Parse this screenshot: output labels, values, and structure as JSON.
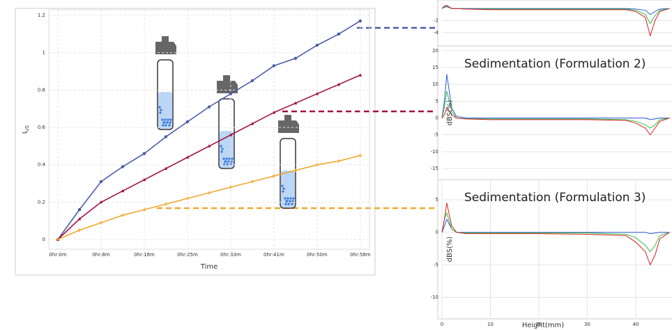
{
  "chart_data": [
    {
      "type": "line",
      "xlabel": "Time",
      "ylabel": "I",
      "ylabel_sub": "US",
      "grid": true,
      "x": [
        0,
        4.17,
        8.33,
        12.5,
        16.67,
        20.83,
        25,
        29.17,
        33.33,
        37.5,
        41.67,
        45.83,
        50,
        54.17,
        58.33
      ],
      "xlim": [
        -1.75,
        60.1
      ],
      "ylim": [
        -0.052,
        1.23
      ],
      "xticks": [
        {
          "value": 0,
          "label": "0hr:0m"
        },
        {
          "value": 8.33,
          "label": "0hr:8m"
        },
        {
          "value": 16.67,
          "label": "0hr:16m"
        },
        {
          "value": 25,
          "label": "0hr:25m"
        },
        {
          "value": 33.33,
          "label": "0hr:33m"
        },
        {
          "value": 41.67,
          "label": "0hr:41m"
        },
        {
          "value": 50,
          "label": "0hr:50m"
        },
        {
          "value": 58.33,
          "label": "0hr:58m"
        }
      ],
      "yticks": [
        0,
        0.2,
        0.4,
        0.6,
        0.8,
        1,
        1.2
      ],
      "series": [
        {
          "color": "#4a5ca8",
          "marker": "circle",
          "values": [
            0,
            0.16,
            0.31,
            0.39,
            0.46,
            0.55,
            0.63,
            0.71,
            0.78,
            0.85,
            0.93,
            0.97,
            1.04,
            1.1,
            1.17
          ]
        },
        {
          "color": "#a3103f",
          "marker": "triangle",
          "values": [
            0,
            0.11,
            0.2,
            0.26,
            0.32,
            0.38,
            0.44,
            0.5,
            0.56,
            0.62,
            0.68,
            0.73,
            0.78,
            0.83,
            0.88
          ]
        },
        {
          "color": "#f0a830",
          "marker": "star",
          "values": [
            0,
            0.05,
            0.09,
            0.13,
            0.16,
            0.19,
            0.22,
            0.25,
            0.28,
            0.31,
            0.34,
            0.37,
            0.4,
            0.42,
            0.45
          ]
        }
      ]
    },
    {
      "type": "line",
      "grid": true,
      "x": [
        0,
        0.5,
        1,
        2,
        3,
        5,
        10,
        20,
        30,
        38,
        40,
        42,
        43,
        44,
        45,
        47
      ],
      "xlim": [
        0,
        47.5
      ],
      "ylim": [
        -6.2,
        1.4
      ],
      "yticks": [
        -2,
        -4
      ],
      "series": [
        {
          "color": "#2a5bd8",
          "values": [
            0,
            0.2,
            0.3,
            0,
            0,
            0,
            0,
            0,
            0,
            0,
            -0.1,
            -0.3,
            -1,
            -0.5,
            -0.1,
            0
          ]
        },
        {
          "color": "#30c040",
          "values": [
            0,
            0.3,
            0.4,
            0,
            0,
            -0.1,
            -0.1,
            -0.1,
            -0.1,
            -0.1,
            -0.3,
            -1,
            -2.5,
            -1.2,
            -0.3,
            0
          ]
        },
        {
          "color": "#d82020",
          "values": [
            0,
            0.4,
            0.5,
            0,
            0,
            -0.1,
            -0.2,
            -0.2,
            -0.2,
            -0.2,
            -0.5,
            -1.5,
            -4.5,
            -2,
            -0.5,
            0
          ]
        }
      ]
    },
    {
      "type": "line",
      "title": "Sedimentation (Formulation 2)",
      "ylabel": "dBS(%)",
      "grid": true,
      "x": [
        0,
        0.5,
        1,
        2,
        3,
        5,
        10,
        20,
        30,
        38,
        40,
        42,
        43,
        44,
        45,
        47
      ],
      "xlim": [
        0,
        47.5
      ],
      "ylim": [
        -18.3,
        21.4
      ],
      "yticks": [
        20,
        15,
        10,
        5,
        0,
        -5,
        -10,
        -15
      ],
      "series": [
        {
          "color": "#2a5bd8",
          "values": [
            0,
            5,
            13,
            3,
            0.5,
            0,
            0,
            0,
            0,
            0,
            0,
            0,
            -0.5,
            -0.3,
            0,
            0
          ]
        },
        {
          "color": "#30c040",
          "values": [
            0,
            3,
            8,
            2,
            0,
            -0.2,
            -0.3,
            -0.3,
            -0.3,
            -0.5,
            -1,
            -2,
            -3,
            -2,
            -0.5,
            0
          ]
        },
        {
          "color": "#d82020",
          "values": [
            0,
            1,
            3,
            1,
            0,
            -0.3,
            -0.5,
            -0.5,
            -0.5,
            -0.7,
            -1.5,
            -3,
            -5,
            -3,
            -1,
            0
          ]
        }
      ]
    },
    {
      "type": "line",
      "title": "Sedimentation (Formulation 3)",
      "ylabel": "dBS(%)",
      "xlabel": "Height(mm)",
      "grid": true,
      "x": [
        0,
        0.5,
        1,
        2,
        3,
        5,
        10,
        20,
        30,
        38,
        40,
        42,
        43,
        44,
        45,
        47
      ],
      "xlim": [
        0,
        47.5
      ],
      "ylim": [
        -13.3,
        8.1
      ],
      "xticks": [
        0,
        10,
        20,
        30,
        40
      ],
      "yticks": [
        5,
        0,
        -5,
        -10
      ],
      "series": [
        {
          "color": "#2a5bd8",
          "values": [
            0,
            1,
            2,
            0.5,
            0,
            0,
            0,
            0,
            0,
            0,
            0,
            0,
            -0.2,
            -0.1,
            0,
            0
          ]
        },
        {
          "color": "#30c040",
          "values": [
            0,
            2,
            3,
            0.5,
            0,
            -0.1,
            -0.1,
            -0.1,
            -0.1,
            -0.3,
            -0.8,
            -2,
            -3,
            -2,
            -0.5,
            0
          ]
        },
        {
          "color": "#d82020",
          "values": [
            0,
            2,
            4.5,
            1,
            0,
            -0.2,
            -0.2,
            -0.2,
            -0.3,
            -0.5,
            -1.5,
            -3,
            -5,
            -3.5,
            -1,
            0
          ]
        }
      ]
    }
  ]
}
